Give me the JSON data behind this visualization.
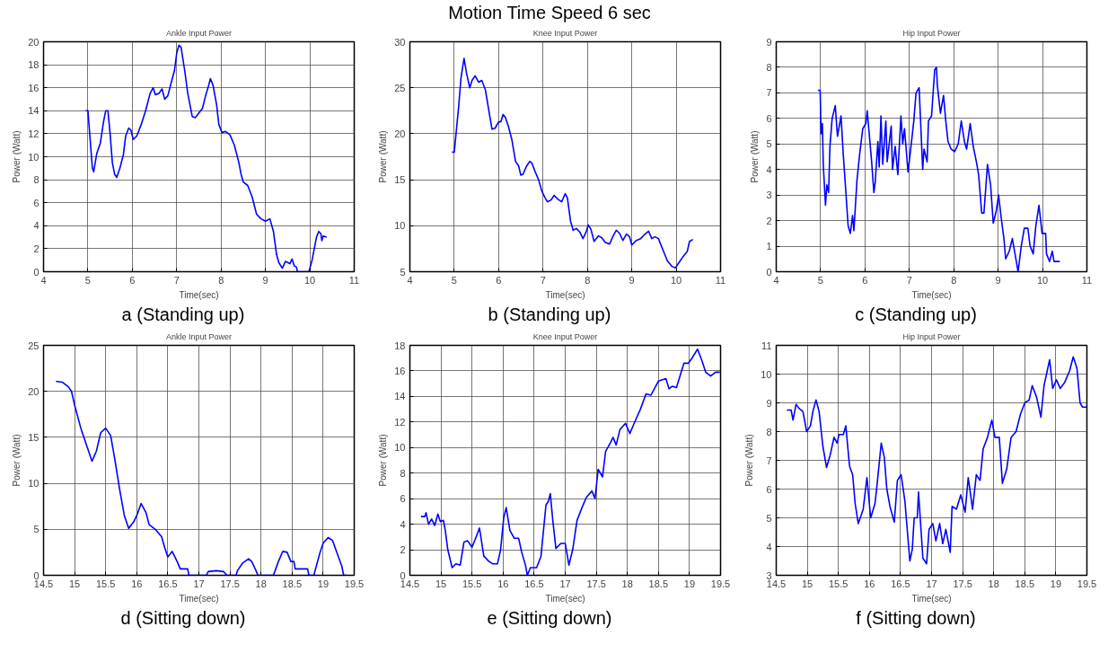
{
  "chart_data": [
    {
      "type": "line",
      "title": "Ankle Input Power",
      "xlabel": "Time(sec)",
      "ylabel": "Power (Watt)",
      "annotations": [
        "a  (Standing up)"
      ],
      "color": "#0000ff",
      "grid": true,
      "xlim": [
        4,
        11
      ],
      "xticks": [
        4,
        5,
        6,
        7,
        8,
        9,
        10,
        11
      ],
      "ylim": [
        0,
        20
      ],
      "yticks": [
        0,
        2,
        4,
        6,
        8,
        10,
        12,
        14,
        16,
        18,
        20
      ],
      "x": [
        4.95,
        5.0,
        5.05,
        5.1,
        5.13,
        5.2,
        5.28,
        5.35,
        5.4,
        5.45,
        5.5,
        5.55,
        5.6,
        5.65,
        5.72,
        5.8,
        5.85,
        5.92,
        5.97,
        6.02,
        6.1,
        6.2,
        6.3,
        6.4,
        6.47,
        6.52,
        6.6,
        6.67,
        6.73,
        6.8,
        6.88,
        6.95,
        7.0,
        7.05,
        7.1,
        7.18,
        7.25,
        7.35,
        7.42,
        7.5,
        7.58,
        7.65,
        7.72,
        7.76,
        7.82,
        7.9,
        7.95,
        8.02,
        8.1,
        8.2,
        8.3,
        8.4,
        8.45,
        8.5,
        8.6,
        8.7,
        8.8,
        8.9,
        9.0,
        9.1,
        9.18,
        9.25,
        9.3,
        9.38,
        9.45,
        9.55,
        9.6,
        9.65,
        9.7,
        9.72,
        9.98,
        10.05,
        10.1,
        10.15,
        10.2,
        10.25,
        10.27,
        10.3,
        10.38
      ],
      "values": [
        14.0,
        14.0,
        11.5,
        9.0,
        8.7,
        10.3,
        11.2,
        13.0,
        14.0,
        14.0,
        12.0,
        9.5,
        8.5,
        8.2,
        9.0,
        10.2,
        11.8,
        12.5,
        12.3,
        11.5,
        11.8,
        12.8,
        14.0,
        15.5,
        16.0,
        15.4,
        15.5,
        15.9,
        15.0,
        15.3,
        16.5,
        17.5,
        19.0,
        19.7,
        19.5,
        17.5,
        15.5,
        13.5,
        13.4,
        13.8,
        14.2,
        15.3,
        16.2,
        16.8,
        16.2,
        14.5,
        12.8,
        12.1,
        12.2,
        11.9,
        11.0,
        9.5,
        8.5,
        7.8,
        7.5,
        6.5,
        5.0,
        4.6,
        4.4,
        4.6,
        3.5,
        1.5,
        0.8,
        0.3,
        0.9,
        0.7,
        1.1,
        0.5,
        0.4,
        0.0,
        0.0,
        1.0,
        2.0,
        3.0,
        3.5,
        3.3,
        2.7,
        3.1,
        3.0
      ]
    },
    {
      "type": "line",
      "title": "Knee Input Power",
      "xlabel": "Time(sec)",
      "ylabel": "Power (Watt)",
      "annotations": [
        "Motion Time Speed 6 sec",
        "b  (Standing up)"
      ],
      "color": "#0000ff",
      "grid": true,
      "xlim": [
        4,
        11
      ],
      "xticks": [
        4,
        5,
        6,
        7,
        8,
        9,
        10,
        11
      ],
      "ylim": [
        5,
        30
      ],
      "yticks": [
        5,
        10,
        15,
        20,
        25,
        30
      ],
      "x": [
        4.95,
        5.0,
        5.05,
        5.1,
        5.15,
        5.22,
        5.28,
        5.35,
        5.4,
        5.47,
        5.55,
        5.62,
        5.7,
        5.78,
        5.85,
        5.92,
        6.0,
        6.05,
        6.1,
        6.15,
        6.22,
        6.3,
        6.38,
        6.45,
        6.5,
        6.55,
        6.62,
        6.7,
        6.75,
        6.82,
        6.9,
        6.97,
        7.05,
        7.1,
        7.18,
        7.25,
        7.33,
        7.42,
        7.5,
        7.55,
        7.62,
        7.68,
        7.75,
        7.83,
        7.9,
        7.97,
        8.02,
        8.08,
        8.15,
        8.25,
        8.32,
        8.4,
        8.5,
        8.58,
        8.65,
        8.72,
        8.8,
        8.88,
        8.95,
        9.0,
        9.1,
        9.2,
        9.3,
        9.38,
        9.45,
        9.52,
        9.6,
        9.7,
        9.8,
        9.9,
        9.98,
        10.05,
        10.15,
        10.25,
        10.3,
        10.38
      ],
      "values": [
        18.0,
        18.0,
        20.5,
        23.0,
        26.0,
        28.2,
        26.5,
        25.0,
        25.8,
        26.3,
        25.6,
        25.8,
        24.8,
        22.5,
        20.5,
        20.6,
        21.3,
        21.3,
        22.1,
        21.8,
        20.8,
        19.3,
        17.0,
        16.5,
        15.5,
        15.6,
        16.4,
        17.0,
        16.8,
        15.9,
        15.0,
        13.8,
        13.0,
        12.6,
        12.8,
        13.3,
        12.9,
        12.6,
        13.5,
        13.0,
        10.5,
        9.5,
        9.7,
        9.3,
        8.6,
        9.3,
        10.1,
        9.6,
        8.3,
        8.9,
        8.7,
        8.2,
        8.0,
        8.9,
        9.5,
        9.2,
        8.4,
        9.1,
        8.8,
        7.9,
        8.4,
        8.6,
        9.1,
        9.4,
        8.6,
        8.8,
        8.6,
        7.4,
        6.2,
        5.6,
        5.4,
        5.9,
        6.6,
        7.2,
        8.3,
        8.5
      ]
    },
    {
      "type": "line",
      "title": "Hip Input Power",
      "xlabel": "Time(sec)",
      "ylabel": "Power (Watt)",
      "annotations": [
        "c  (Standing up)"
      ],
      "color": "#0000ff",
      "grid": true,
      "xlim": [
        4,
        11
      ],
      "xticks": [
        4,
        5,
        6,
        7,
        8,
        9,
        10,
        11
      ],
      "ylim": [
        0,
        9
      ],
      "yticks": [
        0,
        1,
        2,
        3,
        4,
        5,
        6,
        7,
        8,
        9
      ],
      "x": [
        4.94,
        4.99,
        5.01,
        5.04,
        5.06,
        5.11,
        5.14,
        5.18,
        5.21,
        5.26,
        5.33,
        5.38,
        5.46,
        5.51,
        5.55,
        5.62,
        5.67,
        5.72,
        5.75,
        5.82,
        5.88,
        5.95,
        6.02,
        6.05,
        6.1,
        6.15,
        6.2,
        6.23,
        6.29,
        6.32,
        6.36,
        6.4,
        6.47,
        6.5,
        6.59,
        6.62,
        6.68,
        6.74,
        6.81,
        6.85,
        6.89,
        6.97,
        7.03,
        7.1,
        7.15,
        7.22,
        7.3,
        7.33,
        7.4,
        7.43,
        7.5,
        7.57,
        7.61,
        7.63,
        7.7,
        7.77,
        7.82,
        7.87,
        7.94,
        8.02,
        8.1,
        8.17,
        8.24,
        8.29,
        8.37,
        8.44,
        8.51,
        8.56,
        8.63,
        8.68,
        8.76,
        8.83,
        8.89,
        8.96,
        9.01,
        9.07,
        9.13,
        9.17,
        9.25,
        9.32,
        9.38,
        9.45,
        9.52,
        9.59,
        9.67,
        9.72,
        9.79,
        9.85,
        9.92,
        9.99,
        10.07,
        10.09,
        10.16,
        10.22,
        10.26,
        10.39
      ],
      "values": [
        7.1,
        7.1,
        5.4,
        5.8,
        4.2,
        2.6,
        3.4,
        3.1,
        4.9,
        6.0,
        6.5,
        5.3,
        6.1,
        4.6,
        3.6,
        1.8,
        1.5,
        2.2,
        1.6,
        3.6,
        4.6,
        5.6,
        5.8,
        6.3,
        5.3,
        4.3,
        3.1,
        3.5,
        5.1,
        4.1,
        6.1,
        4.2,
        5.9,
        4.3,
        5.7,
        4.0,
        4.9,
        3.8,
        6.1,
        5.0,
        5.6,
        3.9,
        4.8,
        5.9,
        7.0,
        7.2,
        4.0,
        4.8,
        4.3,
        5.9,
        6.1,
        7.9,
        8.0,
        7.3,
        6.2,
        6.9,
        5.9,
        5.1,
        4.8,
        4.7,
        5.0,
        5.9,
        5.1,
        4.8,
        5.8,
        4.9,
        4.3,
        3.8,
        2.3,
        2.3,
        4.2,
        3.4,
        1.9,
        2.4,
        3.0,
        2.1,
        1.3,
        0.5,
        0.8,
        1.3,
        0.7,
        0.0,
        1.0,
        1.7,
        1.7,
        1.0,
        0.7,
        1.8,
        2.6,
        1.5,
        1.5,
        0.7,
        0.4,
        0.8,
        0.4,
        0.4
      ]
    },
    {
      "type": "line",
      "title": "Ankle Input Power",
      "xlabel": "Time(sec)",
      "ylabel": "Power (Watt)",
      "annotations": [
        "d  (Sitting down)"
      ],
      "color": "#0000ff",
      "grid": true,
      "xlim": [
        14.5,
        19.5
      ],
      "xticks": [
        14.5,
        15,
        15.5,
        16,
        16.5,
        17,
        17.5,
        18,
        18.5,
        19,
        19.5
      ],
      "ylim": [
        0,
        25
      ],
      "yticks": [
        0,
        5,
        10,
        15,
        20,
        25
      ],
      "x": [
        14.7,
        14.8,
        14.9,
        14.95,
        15.0,
        15.1,
        15.2,
        15.28,
        15.35,
        15.42,
        15.5,
        15.58,
        15.65,
        15.72,
        15.8,
        15.87,
        15.95,
        16.0,
        16.07,
        16.15,
        16.2,
        16.3,
        16.35,
        16.4,
        16.45,
        16.5,
        16.57,
        16.65,
        16.7,
        16.82,
        16.84,
        17.12,
        17.15,
        17.28,
        17.4,
        17.45,
        17.6,
        17.62,
        17.7,
        17.8,
        17.85,
        17.92,
        17.95,
        18.2,
        18.28,
        18.35,
        18.42,
        18.48,
        18.53,
        18.55,
        18.75,
        18.77,
        18.85,
        18.95,
        19.0,
        19.08,
        19.15,
        19.22,
        19.3,
        19.33,
        19.38
      ],
      "values": [
        21.1,
        21.0,
        20.5,
        20.0,
        18.5,
        16.0,
        14.0,
        12.4,
        13.5,
        15.5,
        16.0,
        15.2,
        12.5,
        9.5,
        6.5,
        5.1,
        5.8,
        6.5,
        7.8,
        6.8,
        5.5,
        5.0,
        4.6,
        4.2,
        3.0,
        2.0,
        2.6,
        1.5,
        0.7,
        0.7,
        0.0,
        0.0,
        0.4,
        0.5,
        0.4,
        0.0,
        0.0,
        0.5,
        1.3,
        1.8,
        1.5,
        0.5,
        0.0,
        0.0,
        1.5,
        2.6,
        2.5,
        1.5,
        1.5,
        0.7,
        0.7,
        0.0,
        0.0,
        2.5,
        3.5,
        4.1,
        3.8,
        2.5,
        1.0,
        0.0,
        0.0
      ]
    },
    {
      "type": "line",
      "title": "Knee Input Power",
      "xlabel": "Time(sec)",
      "ylabel": "Power (Watt)",
      "annotations": [
        "e  (Sitting down)"
      ],
      "color": "#0000ff",
      "grid": true,
      "xlim": [
        14.5,
        19.5
      ],
      "xticks": [
        14.5,
        15,
        15.5,
        16,
        16.5,
        17,
        17.5,
        18,
        18.5,
        19,
        19.5
      ],
      "ylim": [
        0,
        18
      ],
      "yticks": [
        0,
        2,
        4,
        6,
        8,
        10,
        12,
        14,
        16,
        18
      ],
      "x": [
        14.68,
        14.74,
        14.76,
        14.8,
        14.85,
        14.9,
        14.95,
        14.99,
        15.04,
        15.07,
        15.11,
        15.18,
        15.24,
        15.31,
        15.37,
        15.43,
        15.5,
        15.55,
        15.62,
        15.69,
        15.77,
        15.83,
        15.91,
        15.96,
        16.01,
        16.05,
        16.11,
        16.18,
        16.25,
        16.3,
        16.36,
        16.39,
        16.44,
        16.54,
        16.61,
        16.69,
        16.73,
        16.76,
        16.8,
        16.85,
        16.93,
        17.0,
        17.06,
        17.12,
        17.19,
        17.27,
        17.34,
        17.43,
        17.48,
        17.53,
        17.6,
        17.65,
        17.73,
        17.77,
        17.82,
        17.88,
        17.97,
        18.04,
        18.11,
        18.21,
        18.3,
        18.38,
        18.5,
        18.62,
        18.67,
        18.72,
        18.79,
        18.91,
        18.98,
        19.04,
        19.13,
        19.2,
        19.26,
        19.34,
        19.42,
        19.49
      ],
      "values": [
        4.6,
        4.6,
        4.9,
        4.0,
        4.4,
        3.9,
        4.8,
        4.2,
        4.3,
        3.5,
        2.0,
        0.6,
        0.9,
        0.8,
        2.6,
        2.7,
        2.2,
        2.8,
        3.7,
        1.5,
        1.1,
        0.9,
        0.9,
        2.0,
        4.5,
        5.3,
        3.5,
        2.9,
        2.9,
        1.8,
        0.8,
        0.0,
        0.6,
        0.6,
        1.5,
        5.5,
        5.8,
        6.4,
        4.3,
        2.1,
        2.5,
        2.5,
        0.8,
        2.0,
        4.3,
        5.3,
        6.1,
        6.6,
        6.0,
        8.3,
        7.7,
        9.7,
        10.4,
        10.8,
        10.2,
        11.4,
        11.9,
        11.1,
        11.9,
        13.0,
        14.2,
        14.1,
        15.2,
        15.4,
        14.6,
        14.8,
        14.7,
        16.6,
        16.6,
        17.0,
        17.7,
        16.8,
        15.9,
        15.6,
        15.9,
        15.9
      ]
    },
    {
      "type": "line",
      "title": "Hip Input Power",
      "xlabel": "Time(sec)",
      "ylabel": "Power (Watt)",
      "annotations": [
        "f  (Sitting down)"
      ],
      "color": "#0000ff",
      "grid": true,
      "xlim": [
        14.5,
        19.5
      ],
      "xticks": [
        14.5,
        15,
        15.5,
        16,
        16.5,
        17,
        17.5,
        18,
        18.5,
        19,
        19.5
      ],
      "ylim": [
        3,
        11
      ],
      "yticks": [
        3,
        4,
        5,
        6,
        7,
        8,
        9,
        10,
        11
      ],
      "x": [
        14.67,
        14.74,
        14.77,
        14.82,
        14.87,
        14.93,
        14.99,
        15.05,
        15.09,
        15.14,
        15.19,
        15.25,
        15.31,
        15.37,
        15.43,
        15.48,
        15.51,
        15.58,
        15.62,
        15.68,
        15.73,
        15.77,
        15.82,
        15.9,
        15.96,
        16.02,
        16.09,
        16.13,
        16.19,
        16.24,
        16.28,
        16.33,
        16.4,
        16.45,
        16.51,
        16.57,
        16.65,
        16.69,
        16.72,
        16.77,
        16.79,
        16.86,
        16.92,
        16.96,
        17.02,
        17.07,
        17.13,
        17.18,
        17.23,
        17.3,
        17.33,
        17.4,
        17.47,
        17.54,
        17.59,
        17.66,
        17.72,
        17.78,
        17.83,
        17.9,
        17.97,
        18.02,
        18.09,
        18.14,
        18.21,
        18.28,
        18.36,
        18.43,
        18.5,
        18.57,
        18.62,
        18.69,
        18.76,
        18.81,
        18.9,
        18.95,
        19.01,
        19.07,
        19.14,
        19.22,
        19.28,
        19.34,
        19.39,
        19.43,
        19.5
      ],
      "values": [
        8.75,
        8.75,
        8.4,
        8.95,
        8.8,
        8.7,
        8.0,
        8.2,
        8.7,
        9.1,
        8.7,
        7.5,
        6.75,
        7.2,
        7.8,
        7.6,
        7.9,
        7.9,
        8.2,
        6.8,
        6.5,
        5.5,
        4.8,
        5.3,
        6.4,
        5.0,
        5.5,
        6.3,
        7.6,
        7.1,
        6.0,
        5.4,
        4.85,
        6.3,
        6.5,
        5.6,
        3.5,
        3.9,
        5.0,
        5.0,
        5.9,
        3.6,
        3.4,
        4.6,
        4.8,
        4.2,
        4.8,
        4.1,
        4.6,
        3.8,
        5.4,
        5.3,
        5.8,
        5.2,
        6.4,
        5.3,
        6.5,
        6.3,
        7.4,
        7.8,
        8.4,
        7.8,
        7.8,
        6.2,
        6.7,
        7.8,
        8.0,
        8.6,
        9.0,
        9.1,
        9.6,
        9.2,
        8.5,
        9.6,
        10.5,
        9.5,
        9.8,
        9.5,
        9.7,
        10.1,
        10.6,
        10.2,
        9.0,
        8.85,
        8.85
      ]
    }
  ]
}
